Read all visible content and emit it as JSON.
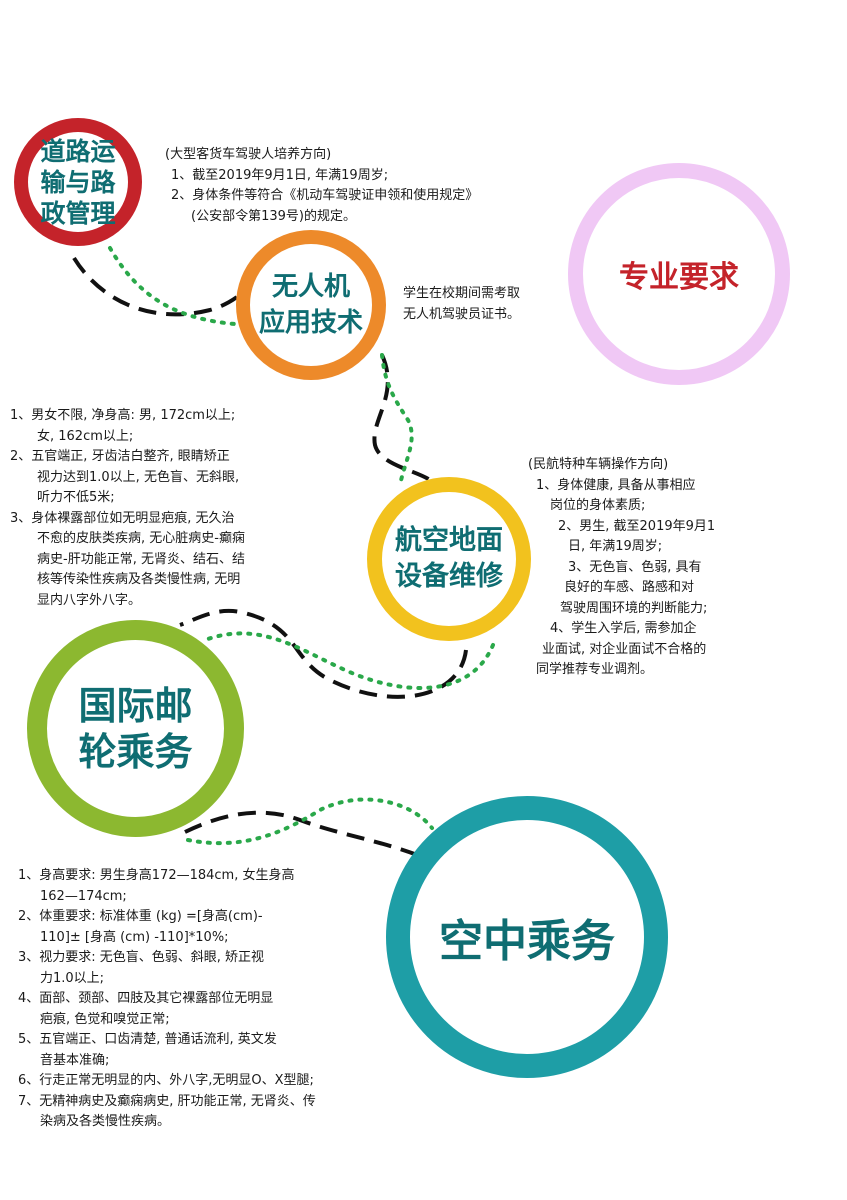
{
  "nodes": {
    "road": {
      "label_lines": [
        "道路运",
        "输与路",
        "政管理"
      ],
      "color": "#c4232a",
      "text_color": "#0f6d72"
    },
    "drone": {
      "label_lines": [
        "无人机",
        "应用技术"
      ],
      "color": "#ed8a2a",
      "text_color": "#0f6d72"
    },
    "requirements": {
      "label_lines": [
        "专业要求"
      ],
      "color": "#f0c8f5",
      "text_color": "#c4232a"
    },
    "aviation": {
      "label_lines": [
        "航空地面",
        "设备维修"
      ],
      "color": "#f2c21e",
      "text_color": "#0f6d72"
    },
    "cruise": {
      "label_lines": [
        "国际邮",
        "轮乘务"
      ],
      "color": "#8cb830",
      "text_color": "#0f6d72"
    },
    "flight": {
      "label_lines": [
        "空中乘务"
      ],
      "color": "#1e9ea6",
      "text_color": "#0f6d72"
    }
  },
  "notes": {
    "road": [
      "(大型客货车驾驶人培养方向)",
      "1、截至2019年9月1日, 年满19周岁;",
      "2、身体条件等符合《机动车驾驶证申领和使用规定》",
      "(公安部令第139号)的规定。"
    ],
    "drone": [
      "学生在校期间需考取",
      "无人机驾驶员证书。"
    ],
    "cruise": [
      "1、男女不限, 净身高: 男, 172cm以上;",
      "女, 162cm以上;",
      "2、五官端正, 牙齿洁白整齐, 眼睛矫正",
      "视力达到1.0以上, 无色盲、无斜眼,",
      "听力不低5米;",
      "3、身体裸露部位如无明显疤痕, 无久治",
      "不愈的皮肤类疾病, 无心脏病史-癫痫",
      "病史-肝功能正常, 无肾炎、结石、结",
      "核等传染性疾病及各类慢性病, 无明",
      "显内八字外八字。"
    ],
    "aviation": [
      "(民航特种车辆操作方向)",
      "1、身体健康, 具备从事相应",
      "岗位的身体素质;",
      "2、男生, 截至2019年9月1",
      "日, 年满19周岁;",
      "3、无色盲、色弱, 具有",
      "良好的车感、路感和对",
      "驾驶周围环境的判断能力;",
      "4、学生入学后, 需参加企",
      "业面试, 对企业面试不合格的",
      "同学推荐专业调剂。"
    ],
    "flight": [
      "1、身高要求: 男生身高172—184cm, 女生身高",
      "162—174cm;",
      "2、体重要求: 标准体重 (kg) =[身高(cm)-",
      "110]± [身高 (cm) -110]*10%;",
      "3、视力要求: 无色盲、色弱、斜眼, 矫正视",
      "力1.0以上;",
      "4、面部、颈部、四肢及其它裸露部位无明显",
      "疤痕, 色觉和嗅觉正常;",
      "5、五官端正、口齿清楚, 普通话流利, 英文发",
      "音基本准确;",
      "6、行走正常无明显的内、外八字,无明显O、X型腿;",
      "7、无精神病史及癫痫病史, 肝功能正常, 无肾炎、传",
      "染病及各类慢性疾病。"
    ]
  },
  "connector_colors": {
    "dashed": "#111111",
    "dotted": "#2aa84a"
  }
}
